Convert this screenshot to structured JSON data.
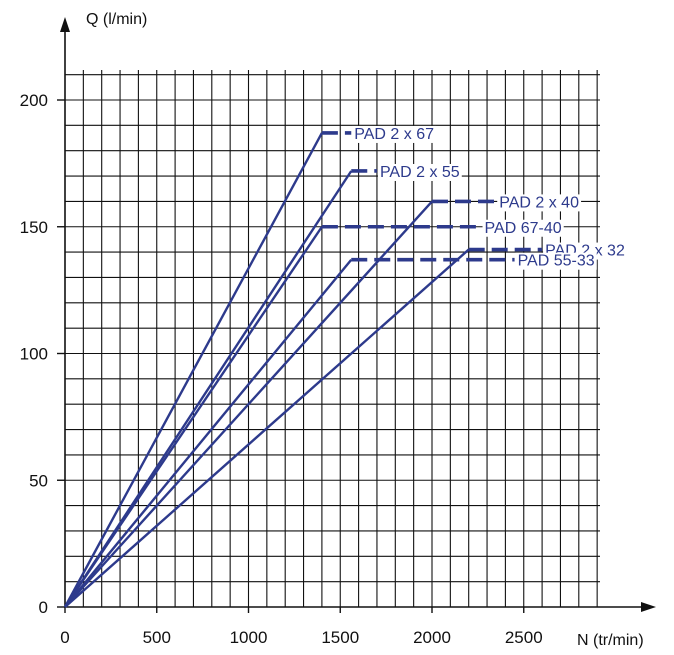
{
  "chart_data": {
    "type": "line",
    "title": "",
    "xlabel": "N (tr/min)",
    "ylabel": "Q (l/min)",
    "xlim": [
      0,
      2900
    ],
    "ylim": [
      0,
      215
    ],
    "x_ticks": [
      "0",
      "500",
      "1000",
      "1500",
      "2000",
      "2500"
    ],
    "y_ticks": [
      "0",
      "50",
      "100",
      "150",
      "200"
    ],
    "grid": true,
    "grid_step_x": 100,
    "grid_step_y": 10,
    "line_color": "#2d3a8c",
    "series": [
      {
        "name": "PAD 2 x 67",
        "solid": [
          [
            0,
            0
          ],
          [
            1400,
            187
          ]
        ],
        "dashed": [
          [
            1400,
            187
          ],
          [
            1560,
            187
          ]
        ]
      },
      {
        "name": "PAD 2 x 55",
        "solid": [
          [
            0,
            0
          ],
          [
            1560,
            172
          ]
        ],
        "dashed": [
          [
            1560,
            172
          ],
          [
            1700,
            172
          ]
        ]
      },
      {
        "name": "PAD 2 x 40",
        "solid": [
          [
            0,
            0
          ],
          [
            2000,
            160
          ]
        ],
        "dashed": [
          [
            2000,
            160
          ],
          [
            2350,
            160
          ]
        ]
      },
      {
        "name": "PAD 67-40",
        "solid": [
          [
            0,
            0
          ],
          [
            1400,
            150
          ]
        ],
        "dashed": [
          [
            1400,
            150
          ],
          [
            2270,
            150
          ]
        ]
      },
      {
        "name": "PAD 2 x 32",
        "solid": [
          [
            0,
            0
          ],
          [
            2200,
            141
          ]
        ],
        "dashed": [
          [
            2200,
            141
          ],
          [
            2600,
            141
          ]
        ]
      },
      {
        "name": "PAD 55-33",
        "solid": [
          [
            0,
            0
          ],
          [
            1560,
            137
          ]
        ],
        "dashed": [
          [
            1560,
            137
          ],
          [
            2450,
            137
          ]
        ]
      }
    ]
  }
}
